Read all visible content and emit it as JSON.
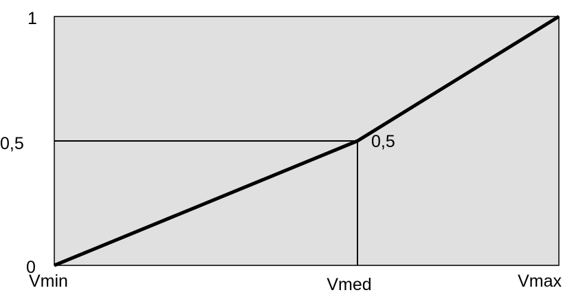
{
  "chart_data": {
    "type": "line",
    "title": "",
    "xlabel": "",
    "ylabel": "",
    "x_categories": [
      "Vmin",
      "Vmed",
      "Vmax"
    ],
    "y_tick_labels": [
      "0",
      "0,5",
      "1"
    ],
    "ylim": [
      0,
      1
    ],
    "grid": false,
    "background_color": "#e0e0e0",
    "line_color": "#000000",
    "series": [
      {
        "points": [
          {
            "x": "Vmin",
            "y": 0
          },
          {
            "x": "Vmed",
            "y": 0.5
          },
          {
            "x": "Vmax",
            "y": 1
          }
        ]
      }
    ],
    "annotations": [
      {
        "text": "0,5",
        "at": {
          "x": "Vmed",
          "y": 0.5
        }
      }
    ],
    "reference_lines": [
      {
        "type": "horizontal",
        "y": 0.5,
        "from": "Vmin",
        "to": "Vmed"
      },
      {
        "type": "vertical",
        "x": "Vmed",
        "from": 0,
        "to": 0.5
      }
    ]
  }
}
